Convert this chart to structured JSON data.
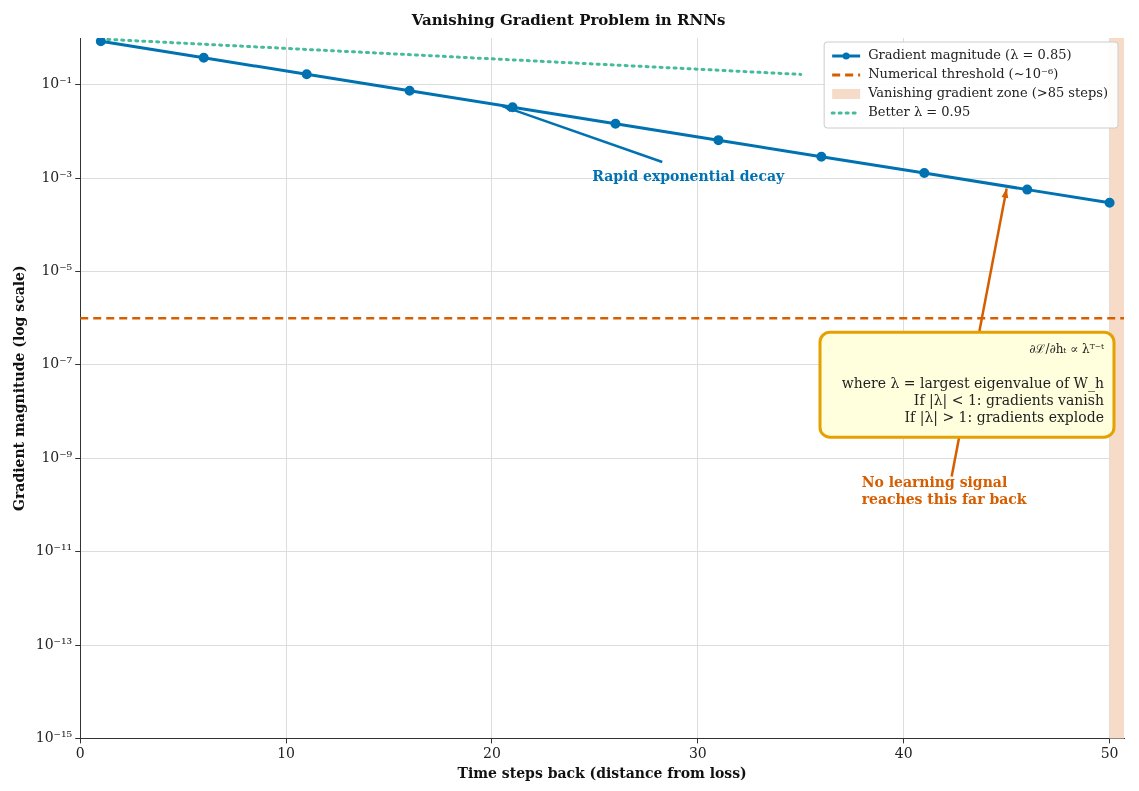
{
  "chart_data": {
    "type": "line",
    "title": "Vanishing Gradient Problem in RNNs",
    "xlabel": "Time steps back (distance from loss)",
    "ylabel": "Gradient magnitude (log scale)",
    "series": [
      {
        "name": "Gradient magnitude (λ = 0.85)",
        "color": "#0072b2",
        "marker": "circle",
        "line_style": "solid",
        "x": [
          1,
          6,
          11,
          16,
          21,
          26,
          31,
          36,
          41,
          46,
          50
        ],
        "values": [
          0.85,
          0.377,
          0.167,
          0.0743,
          0.0329,
          0.0146,
          0.00649,
          0.00287,
          0.00128,
          0.000566,
          0.000296
        ]
      },
      {
        "name": "Better λ = 0.95",
        "color": "#44bb99",
        "marker": "none",
        "line_style": "dotted",
        "x": [
          1,
          5,
          10,
          15,
          20,
          25,
          30,
          35
        ],
        "values": [
          0.95,
          0.774,
          0.599,
          0.463,
          0.358,
          0.277,
          0.215,
          0.166
        ]
      }
    ],
    "ref_lines": [
      {
        "axis": "y",
        "value": 1e-06,
        "label": "Numerical threshold (~10⁻⁶)",
        "color": "#d55e00",
        "line_style": "dashed"
      }
    ],
    "bands": [
      {
        "axis": "x",
        "from": 50,
        "to": 50.7,
        "label": "Vanishing gradient zone (>85 steps)",
        "color": "#f6dcc8"
      }
    ],
    "annotations": [
      {
        "text": "Rapid exponential decay",
        "x": 20.5,
        "y": 0.035
      },
      {
        "text": "No learning signal\nreaches this far back",
        "x": 45,
        "y": 0.0006
      },
      "∂ℒ/∂hₜ ∝ λᵀ⁻ᵗ",
      "where λ = largest eigenvalue of W_h\nIf |λ| < 1: gradients vanish\nIf |λ| > 1: gradients explode"
    ],
    "xlim": [
      0,
      50.7
    ],
    "xticks": [
      0,
      10,
      20,
      30,
      40,
      50
    ],
    "ylim": [
      1e-15,
      1
    ],
    "log": true,
    "yticks": [
      {
        "value": 1e-15,
        "label": "10⁻¹⁵"
      },
      {
        "value": 1e-13,
        "label": "10⁻¹³"
      },
      {
        "value": 1e-11,
        "label": "10⁻¹¹"
      },
      {
        "value": 1e-09,
        "label": "10⁻⁹"
      },
      {
        "value": 1e-07,
        "label": "10⁻⁷"
      },
      {
        "value": 1e-05,
        "label": "10⁻⁵"
      },
      {
        "value": 0.001,
        "label": "10⁻³"
      },
      {
        "value": 0.1,
        "label": "10⁻¹"
      }
    ],
    "grid": true,
    "legend": "top right"
  }
}
